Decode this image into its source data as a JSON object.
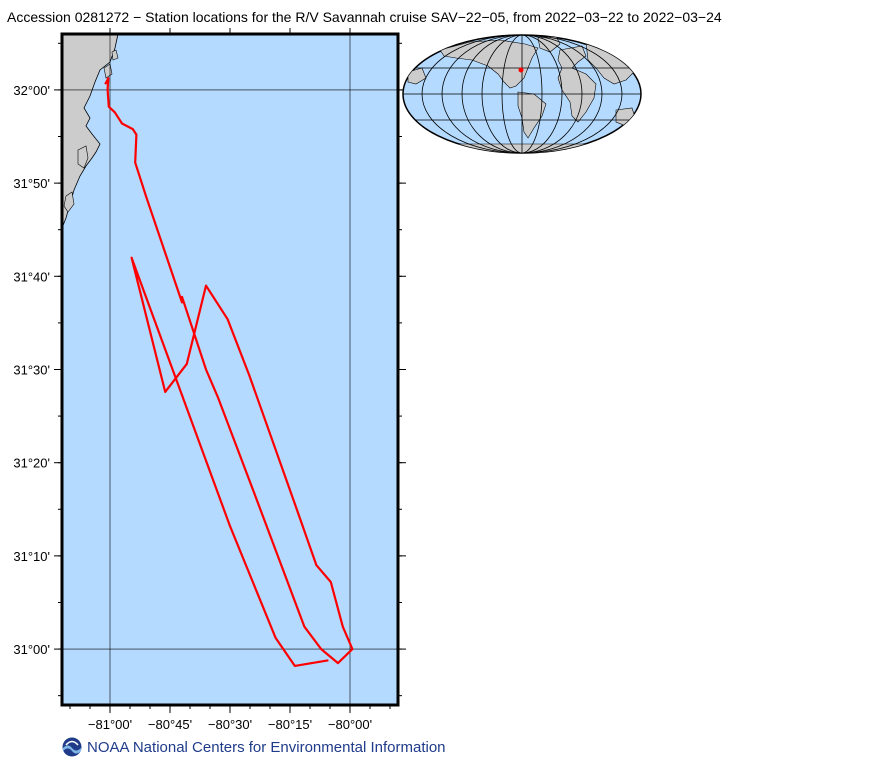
{
  "title": "Accession 0281272 − Station locations for the R/V Savannah cruise SAV−22−05, from 2022−03−22 to 2022−03−24",
  "map": {
    "lon_range": [
      -81.2,
      -79.8
    ],
    "lat_range": [
      30.9,
      32.1
    ],
    "lat_ticks": [
      {
        "value": 32.0,
        "label": "32°00'"
      },
      {
        "value": 31.8333,
        "label": "31°50'"
      },
      {
        "value": 31.6667,
        "label": "31°40'"
      },
      {
        "value": 31.5,
        "label": "31°30'"
      },
      {
        "value": 31.3333,
        "label": "31°20'"
      },
      {
        "value": 31.1667,
        "label": "31°10'"
      },
      {
        "value": 31.0,
        "label": "31°00'"
      }
    ],
    "lon_ticks": [
      {
        "value": -81.0,
        "label": "−81°00'"
      },
      {
        "value": -80.75,
        "label": "−80°45'"
      },
      {
        "value": -80.5,
        "label": "−80°30'"
      },
      {
        "value": -80.25,
        "label": "−80°15'"
      },
      {
        "value": -80.0,
        "label": "−80°00'"
      }
    ],
    "ocean_color": "#b4daff",
    "land_color": "#cccccc",
    "track_color": "#ff0000",
    "track": [
      [
        -81.02,
        32.01
      ],
      [
        -81.007,
        32.021
      ],
      [
        -81.01,
        32.0
      ],
      [
        -81.005,
        31.97
      ],
      [
        -80.98,
        31.96
      ],
      [
        -80.95,
        31.94
      ],
      [
        -80.905,
        31.93
      ],
      [
        -80.89,
        31.92
      ],
      [
        -80.895,
        31.87
      ],
      [
        -80.85,
        31.81
      ],
      [
        -80.7,
        31.62
      ],
      [
        -80.7,
        31.63
      ],
      [
        -80.6,
        31.5
      ],
      [
        -80.55,
        31.45
      ],
      [
        -80.4,
        31.28
      ],
      [
        -80.19,
        31.04
      ],
      [
        -80.12,
        31.0
      ],
      [
        -80.05,
        30.975
      ],
      [
        -79.99,
        31.0
      ],
      [
        -80.03,
        31.04
      ],
      [
        -80.08,
        31.12
      ],
      [
        -80.14,
        31.15
      ],
      [
        -80.23,
        31.26
      ],
      [
        -80.42,
        31.49
      ],
      [
        -80.51,
        31.59
      ],
      [
        -80.6,
        31.65
      ],
      [
        -80.68,
        31.51
      ],
      [
        -80.77,
        31.46
      ],
      [
        -80.91,
        31.7
      ],
      [
        -80.5,
        31.22
      ],
      [
        -80.31,
        31.02
      ],
      [
        -80.23,
        30.97
      ],
      [
        -80.09,
        30.98
      ]
    ]
  },
  "inset": {
    "ocean_color": "#b4daff",
    "land_color": "#cccccc",
    "marker_color": "#ff0000",
    "marker_lon": -80.5,
    "marker_lat": 31.5
  },
  "footer": {
    "text": "NOAA National Centers for Environmental Information",
    "logo_icon": "noaa-logo-icon",
    "logo_color": "#1f3b8a"
  }
}
